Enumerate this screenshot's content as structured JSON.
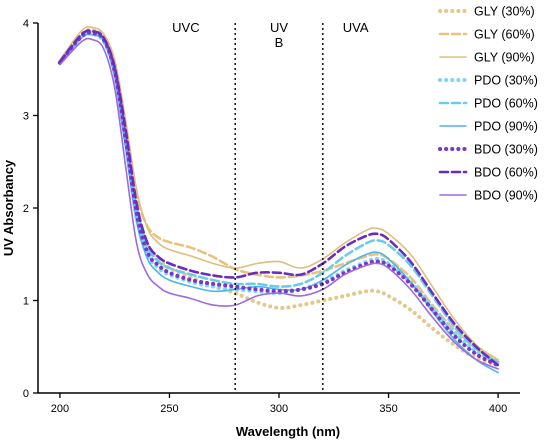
{
  "chart_data": {
    "type": "line",
    "xlabel": "Wavelength (nm)",
    "ylabel": "UV Absorbancy",
    "xlim": [
      190,
      410
    ],
    "ylim": [
      0,
      4
    ],
    "xticks": [
      "200",
      "250",
      "300",
      "350",
      "400"
    ],
    "yticks": [
      "0",
      "1",
      "2",
      "3",
      "4"
    ],
    "grid": false,
    "legend_position": "right",
    "regions": [
      {
        "label": "UVC",
        "from": 190,
        "to": 280
      },
      {
        "label": "UV\nB",
        "from": 280,
        "to": 320
      },
      {
        "label": "UVA",
        "from": 320,
        "to": 410
      }
    ],
    "dividers": [
      280,
      320
    ],
    "x": [
      200,
      210,
      215,
      220,
      225,
      230,
      235,
      240,
      245,
      250,
      260,
      270,
      280,
      290,
      300,
      310,
      320,
      330,
      340,
      345,
      350,
      360,
      370,
      380,
      390,
      400
    ],
    "series": [
      {
        "name": "GLY (30%)",
        "color": "#e3c88a",
        "dash": "dot",
        "values": [
          3.58,
          3.88,
          3.92,
          3.85,
          3.55,
          2.85,
          2.0,
          1.6,
          1.45,
          1.35,
          1.25,
          1.15,
          1.08,
          0.98,
          0.92,
          0.95,
          1.0,
          1.05,
          1.1,
          1.1,
          1.05,
          0.9,
          0.7,
          0.52,
          0.38,
          0.3
        ]
      },
      {
        "name": "GLY (60%)",
        "color": "#e8c27e",
        "dash": "dash",
        "values": [
          3.56,
          3.86,
          3.9,
          3.82,
          3.52,
          2.9,
          2.15,
          1.8,
          1.68,
          1.63,
          1.57,
          1.47,
          1.34,
          1.28,
          1.25,
          1.27,
          1.32,
          1.4,
          1.48,
          1.5,
          1.45,
          1.25,
          0.95,
          0.68,
          0.48,
          0.34
        ]
      },
      {
        "name": "GLY (90%)",
        "color": "#dfbe7b",
        "dash": "solid",
        "values": [
          3.6,
          3.92,
          3.95,
          3.88,
          3.6,
          2.95,
          2.2,
          1.78,
          1.62,
          1.55,
          1.48,
          1.4,
          1.35,
          1.4,
          1.42,
          1.35,
          1.45,
          1.62,
          1.76,
          1.78,
          1.72,
          1.5,
          1.15,
          0.8,
          0.52,
          0.36
        ]
      },
      {
        "name": "PDO (30%)",
        "color": "#7fd6f2",
        "dash": "dot",
        "values": [
          3.57,
          3.85,
          3.88,
          3.8,
          3.45,
          2.7,
          1.9,
          1.5,
          1.35,
          1.28,
          1.2,
          1.15,
          1.12,
          1.1,
          1.08,
          1.12,
          1.2,
          1.32,
          1.42,
          1.45,
          1.4,
          1.2,
          0.92,
          0.65,
          0.45,
          0.32
        ]
      },
      {
        "name": "PDO (60%)",
        "color": "#6ccbe8",
        "dash": "dash",
        "values": [
          3.58,
          3.87,
          3.9,
          3.83,
          3.5,
          2.8,
          2.0,
          1.58,
          1.42,
          1.35,
          1.28,
          1.22,
          1.18,
          1.18,
          1.15,
          1.18,
          1.3,
          1.48,
          1.62,
          1.65,
          1.6,
          1.38,
          1.05,
          0.72,
          0.48,
          0.33
        ]
      },
      {
        "name": "PDO (90%)",
        "color": "#4fb4ea",
        "dash": "solid",
        "values": [
          3.56,
          3.84,
          3.87,
          3.8,
          3.42,
          2.65,
          1.85,
          1.45,
          1.3,
          1.22,
          1.15,
          1.1,
          1.12,
          1.15,
          1.12,
          1.12,
          1.22,
          1.38,
          1.5,
          1.52,
          1.45,
          1.2,
          0.88,
          0.58,
          0.36,
          0.22
        ]
      },
      {
        "name": "BDO (30%)",
        "color": "#7a35c9",
        "dash": "dot",
        "values": [
          3.57,
          3.86,
          3.89,
          3.82,
          3.48,
          2.75,
          1.95,
          1.52,
          1.38,
          1.3,
          1.22,
          1.18,
          1.15,
          1.12,
          1.1,
          1.12,
          1.18,
          1.3,
          1.4,
          1.42,
          1.38,
          1.18,
          0.9,
          0.62,
          0.42,
          0.3
        ]
      },
      {
        "name": "BDO (60%)",
        "color": "#6a2cc0",
        "dash": "dash",
        "values": [
          3.58,
          3.88,
          3.91,
          3.84,
          3.52,
          2.85,
          2.05,
          1.62,
          1.47,
          1.4,
          1.32,
          1.27,
          1.25,
          1.3,
          1.3,
          1.28,
          1.4,
          1.58,
          1.7,
          1.72,
          1.66,
          1.42,
          1.08,
          0.75,
          0.5,
          0.3
        ]
      },
      {
        "name": "BDO (90%)",
        "color": "#9d6ae0",
        "dash": "solid",
        "values": [
          3.55,
          3.8,
          3.82,
          3.72,
          3.3,
          2.45,
          1.62,
          1.28,
          1.15,
          1.08,
          1.02,
          0.95,
          0.95,
          1.05,
          1.08,
          1.05,
          1.12,
          1.28,
          1.38,
          1.4,
          1.35,
          1.12,
          0.82,
          0.55,
          0.36,
          0.26
        ]
      }
    ]
  }
}
